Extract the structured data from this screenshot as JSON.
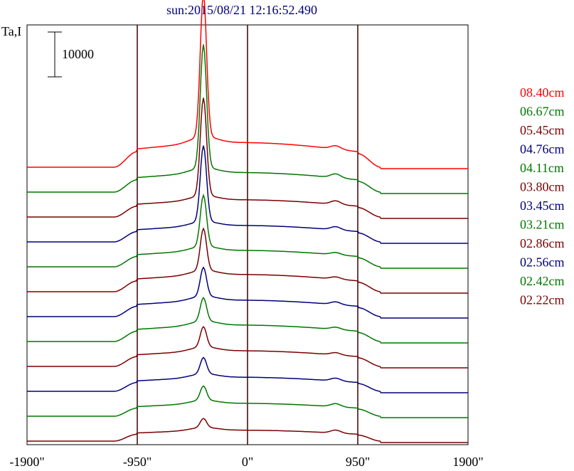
{
  "chart_data": {
    "type": "line",
    "title": "sun:2015/08/21 12:16:52.490",
    "ylabel": "Ta,I",
    "scale_bar_label": "10000",
    "x_ticks": [
      {
        "value": -1900,
        "label": "-1900\""
      },
      {
        "value": -950,
        "label": "-950\""
      },
      {
        "value": 0,
        "label": "0\""
      },
      {
        "value": 950,
        "label": "950\""
      },
      {
        "value": 1900,
        "label": "1900\""
      }
    ],
    "xlim": [
      -1900,
      1900
    ],
    "vertical_markers": [
      -950,
      0,
      950
    ],
    "series": [
      {
        "name": "08.40cm",
        "color": "#ff0000",
        "peak": 35000,
        "plateau": 6300,
        "right_bump": 4200
      },
      {
        "name": "06.67cm",
        "color": "#007700",
        "peak": 30000,
        "plateau": 5000,
        "right_bump": 3600
      },
      {
        "name": "05.45cm",
        "color": "#7a0000",
        "peak": 24000,
        "plateau": 4400,
        "right_bump": 3200
      },
      {
        "name": "04.76cm",
        "color": "#00007a",
        "peak": 19000,
        "plateau": 4200,
        "right_bump": 3000
      },
      {
        "name": "04.11cm",
        "color": "#007700",
        "peak": 13500,
        "plateau": 4200,
        "right_bump": 2800
      },
      {
        "name": "03.80cm",
        "color": "#7a0000",
        "peak": 11500,
        "plateau": 4400,
        "right_bump": 2900
      },
      {
        "name": "03.45cm",
        "color": "#00007a",
        "peak": 8500,
        "plateau": 4200,
        "right_bump": 2900
      },
      {
        "name": "03.21cm",
        "color": "#007700",
        "peak": 7300,
        "plateau": 4200,
        "right_bump": 2800
      },
      {
        "name": "02.86cm",
        "color": "#7a0000",
        "peak": 6500,
        "plateau": 4000,
        "right_bump": 2700
      },
      {
        "name": "02.56cm",
        "color": "#00007a",
        "peak": 5400,
        "plateau": 3600,
        "right_bump": 2600
      },
      {
        "name": "02.42cm",
        "color": "#007700",
        "peak": 4800,
        "plateau": 3300,
        "right_bump": 2500
      },
      {
        "name": "02.22cm",
        "color": "#7a0000",
        "peak": 3400,
        "plateau": 2800,
        "right_bump": 2200
      }
    ]
  }
}
